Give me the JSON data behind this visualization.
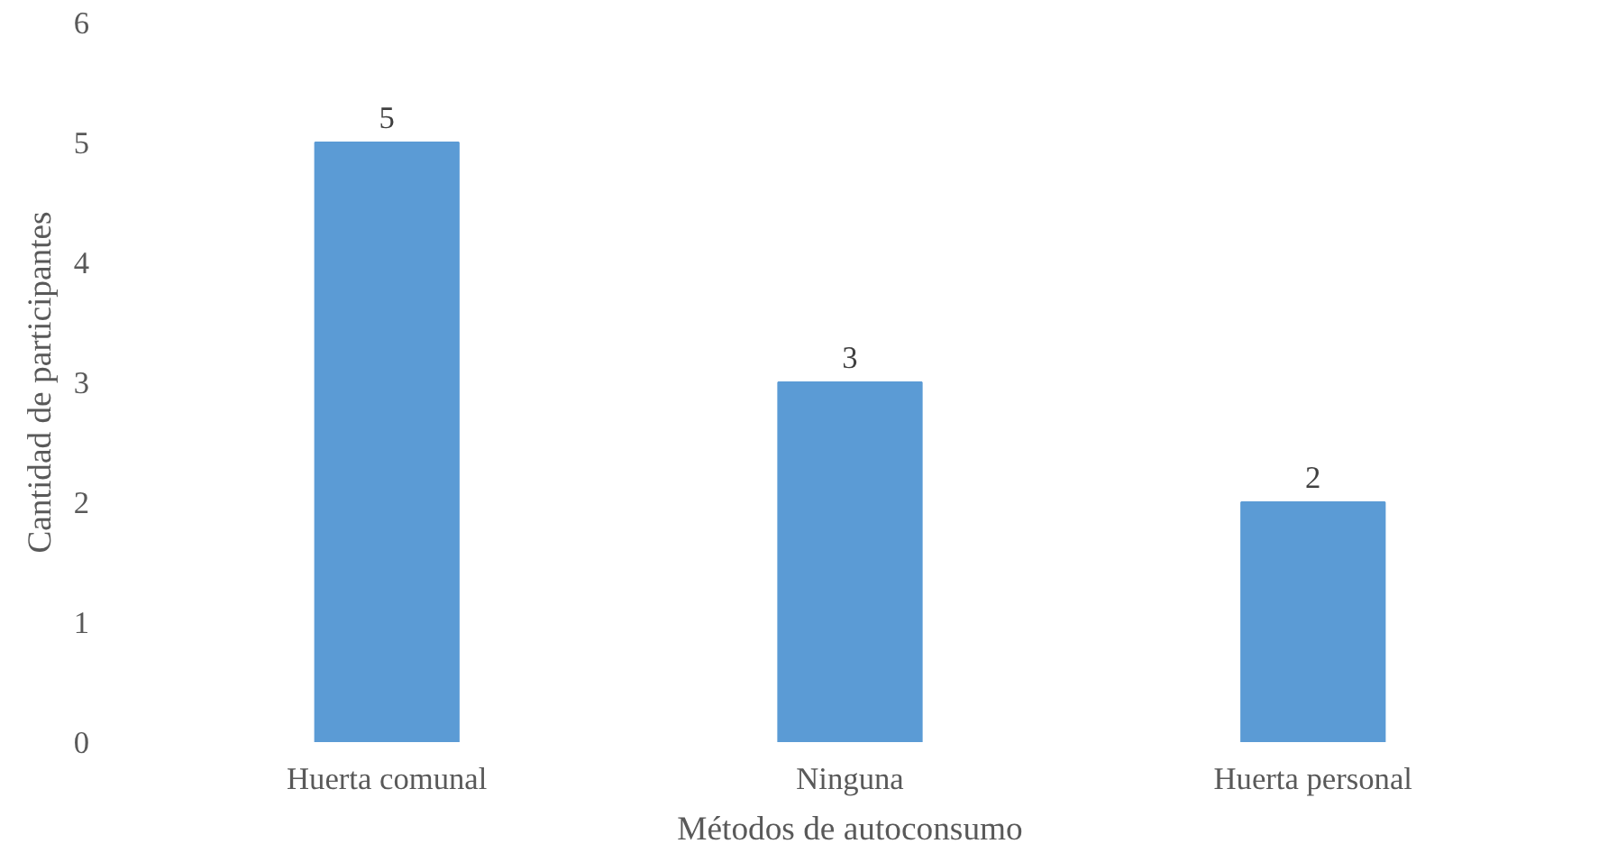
{
  "chart_data": {
    "type": "bar",
    "xlabel": "Métodos de autoconsumo",
    "ylabel": "Cantidad de participantes",
    "categories": [
      "Huerta comunal",
      "Ninguna",
      "Huerta personal"
    ],
    "values": [
      5,
      3,
      2
    ],
    "color": "#5b9bd5",
    "data_labels": true,
    "grid": false,
    "ylim": [
      0,
      6
    ],
    "yticks": [
      0,
      1,
      2,
      3,
      4,
      5,
      6
    ]
  }
}
